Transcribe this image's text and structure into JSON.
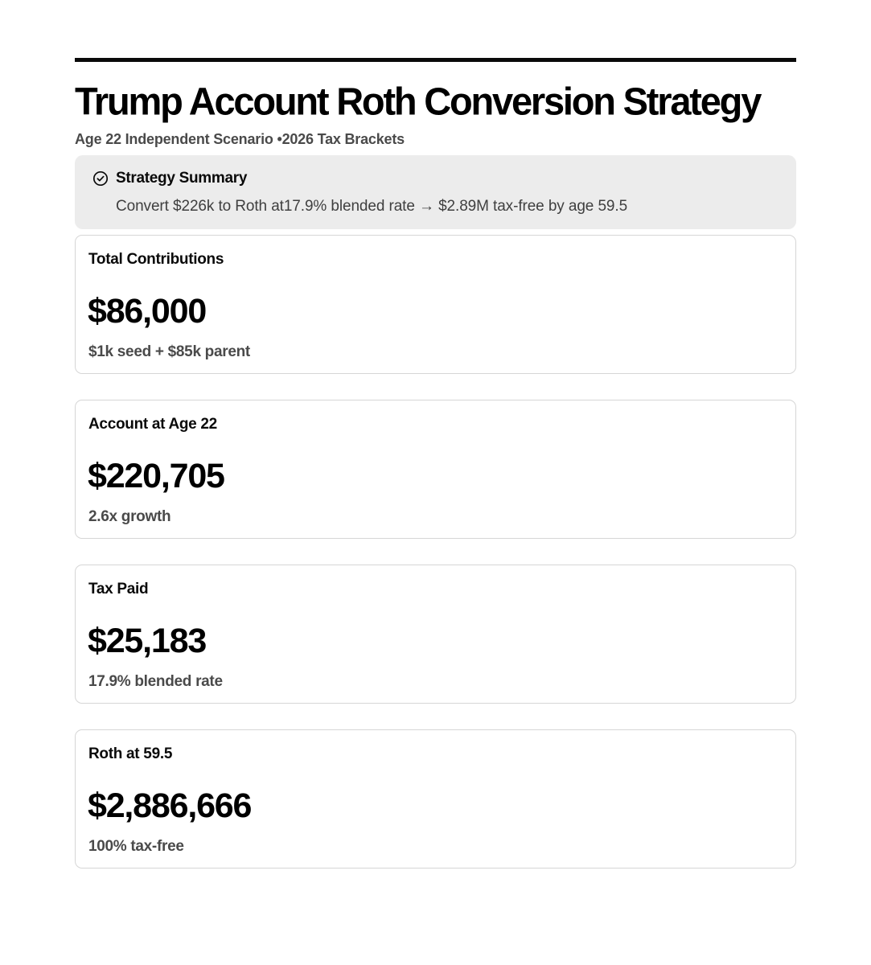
{
  "header": {
    "title": "Trump Account Roth Conversion Strategy",
    "subtitle": "Age 22 Independent Scenario •2026 Tax Brackets"
  },
  "summary": {
    "icon": "check-circle-icon",
    "heading": "Strategy Summary",
    "text": "Convert $226k to Roth at17.9% blended rate → $2.89M tax-free by age 59.5"
  },
  "cards": [
    {
      "label": "Total Contributions",
      "value": "$86,000",
      "note": "$1k seed + $85k parent"
    },
    {
      "label": "Account at Age 22",
      "value": "$220,705",
      "note": "2.6x growth"
    },
    {
      "label": "Tax Paid",
      "value": "$25,183",
      "note": "17.9% blended rate"
    },
    {
      "label": "Roth at 59.5",
      "value": "$2,886,666",
      "note": "100% tax-free"
    }
  ],
  "colors": {
    "text": "#0a0a0a",
    "muted": "#4a4a4a",
    "summary_bg": "#ececec",
    "card_border": "#d6d6d6"
  }
}
